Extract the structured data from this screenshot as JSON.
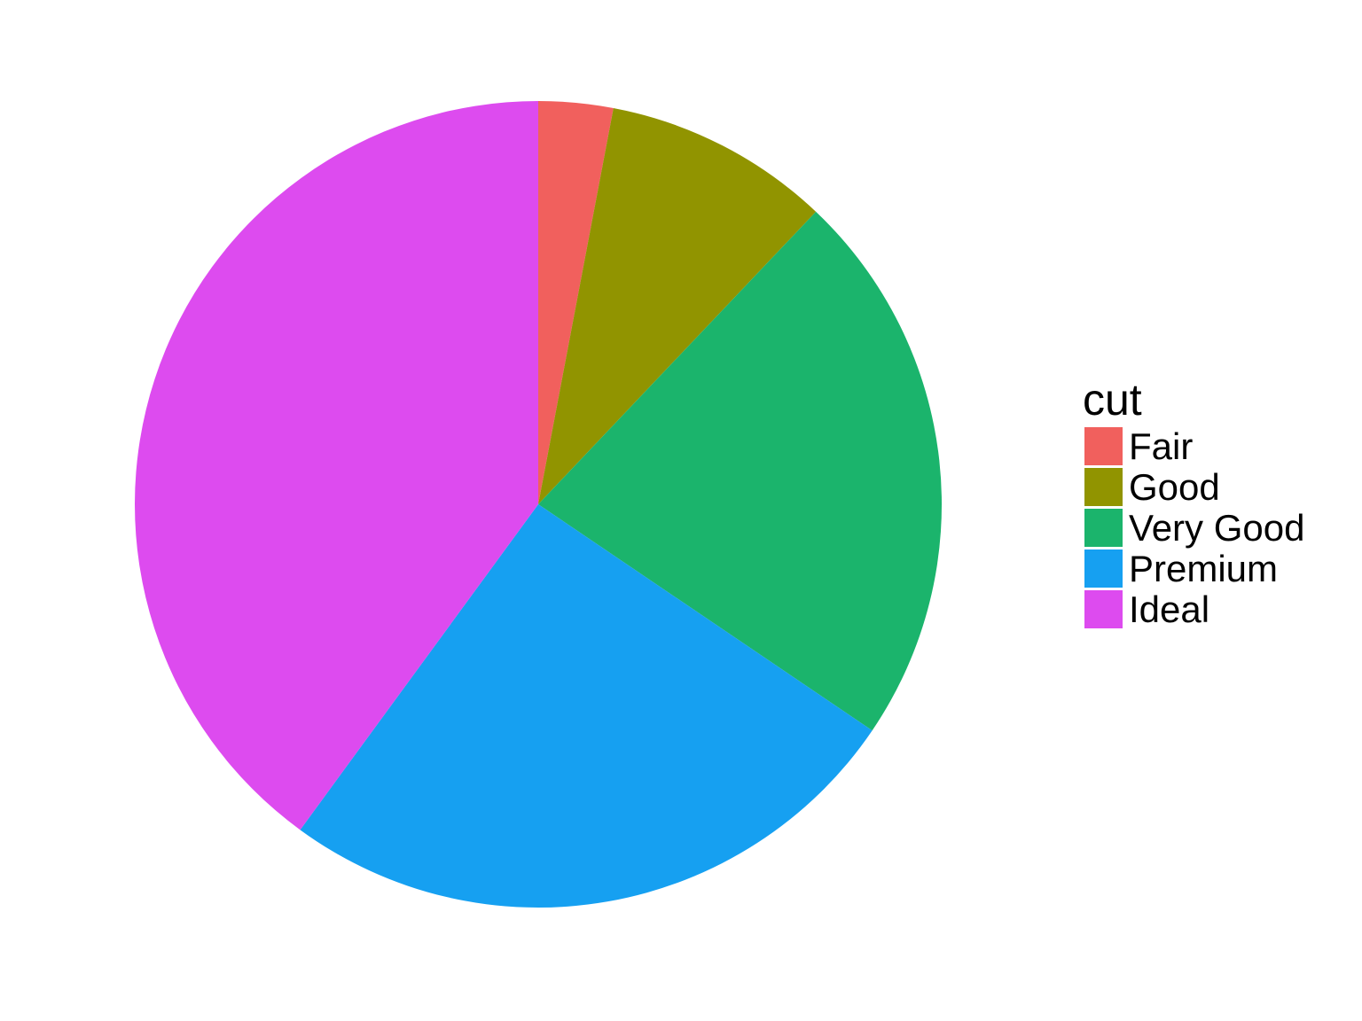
{
  "chart_data": {
    "type": "pie",
    "legend_title": "cut",
    "legend_position": "right",
    "direction": "clockwise",
    "start_angle": "top",
    "categories": [
      "Fair",
      "Good",
      "Very Good",
      "Premium",
      "Ideal"
    ],
    "values": [
      1610,
      4906,
      12082,
      13791,
      21551
    ],
    "colors": [
      "#F1605D",
      "#919400",
      "#1BB46C",
      "#16A0F1",
      "#DD4BEF"
    ]
  }
}
